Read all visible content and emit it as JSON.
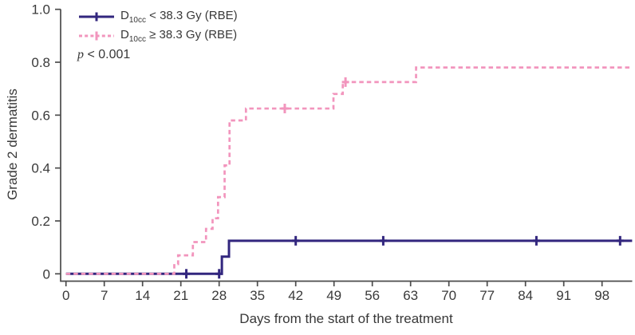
{
  "figure": {
    "background": "#ffffff",
    "axis_color": "#4c4c4c",
    "text_color": "#383838",
    "legend": {
      "items": [
        {
          "prefix": "D",
          "sub": "10cc",
          "rest": " < 38.3 Gy (RBE)",
          "color": "#32267e",
          "line_style": "solid"
        },
        {
          "prefix": "D",
          "sub": "10cc",
          "rest": " ≥ 38.3 Gy (RBE)",
          "color": "#f295bd",
          "line_style": "dashed"
        }
      ],
      "p_italic": "p",
      "p_rest": " < 0.001"
    }
  },
  "chart_data": {
    "type": "line",
    "subtype": "kaplan-meier-cumulative-incidence-step",
    "title": "",
    "xlabel": "Days from the start of the treatment",
    "ylabel": "Grade 2 dermatitis",
    "annotation": "p < 0.001",
    "xlim": [
      0,
      103.5
    ],
    "ylim": [
      0,
      1.0
    ],
    "xticks": [
      0,
      7,
      14,
      21,
      28,
      35,
      42,
      49,
      56,
      63,
      70,
      77,
      84,
      91,
      98
    ],
    "yticks": [
      0,
      0.2,
      0.4,
      0.6,
      0.8,
      1.0
    ],
    "ytick_labels": [
      "0",
      "0.2",
      "0.4",
      "0.6",
      "0.8",
      "1.0"
    ],
    "grid": false,
    "legend_position": "top-left",
    "series": [
      {
        "name": "D10cc < 38.3 Gy (RBE)",
        "color": "#32267e",
        "style": "solid",
        "steps": [
          [
            0,
            0
          ],
          [
            28.5,
            0.065
          ],
          [
            29.8,
            0.125
          ],
          [
            103.5,
            0.125
          ]
        ],
        "censors": [
          [
            22,
            0
          ],
          [
            28,
            0
          ],
          [
            42,
            0.125
          ],
          [
            58,
            0.125
          ],
          [
            86,
            0.125
          ],
          [
            101.3,
            0.125
          ]
        ]
      },
      {
        "name": "D10cc ≥ 38.3 Gy (RBE)",
        "color": "#f295bd",
        "style": "dashed",
        "steps": [
          [
            0,
            0
          ],
          [
            19.8,
            0.037
          ],
          [
            20.5,
            0.07
          ],
          [
            23.2,
            0.12
          ],
          [
            25.6,
            0.17
          ],
          [
            26.8,
            0.21
          ],
          [
            27.8,
            0.29
          ],
          [
            29,
            0.41
          ],
          [
            29.9,
            0.58
          ],
          [
            32.9,
            0.625
          ],
          [
            48.9,
            0.68
          ],
          [
            50.6,
            0.725
          ],
          [
            64,
            0.78
          ],
          [
            103.5,
            0.78
          ]
        ],
        "censors": [
          [
            40,
            0.625
          ],
          [
            51.1,
            0.725
          ]
        ]
      }
    ]
  }
}
